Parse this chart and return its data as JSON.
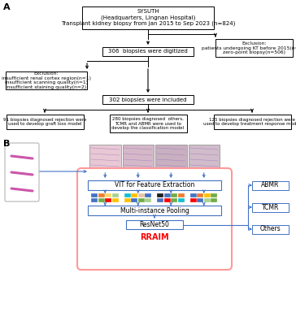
{
  "title_A": "A",
  "title_B": "B",
  "box_main": "SYSUTH\n(Headquarters, Lingnan Hospital)\nTransplant kidney biopsy from Jan 2015 to Sep 2023 (n=824)",
  "box_exclusion1": "Exclusion:\npatients undergoing KT before 2015(n=12)\nzero-point biopsy(n=506)",
  "box_digitized": "306  biopsies were digitized",
  "box_exclusion2": "Exclusion:\ninsufficient renal cortex region(n=1)\ninsufficient scanning quality(n=1)\ninsufficient staining quality(n=2)",
  "box_included": "302 biopsies were included",
  "box_left": "91 biopsies diagnosed rejection were\nused to develop graft loss model",
  "box_center": "280 biopsies diagnosed  others,\nTCMR and ABMR were used to\ndevelop the classification model",
  "box_right": "125 biopsies diagnosed rejection were\nused to develop treatment response model",
  "vit_label": "VIT for Feature Extraction",
  "mip_label": "Multi-instance Pooling",
  "resnet_label": "ResNet50",
  "rraim_label": "RRAIM",
  "abmr_label": "ABMR",
  "tcmr_label": "TCMR",
  "others_label": "Others",
  "arrow_color": "#4472C4",
  "rraim_color": "#FF0000",
  "bg_color": "#FFFFFF",
  "feat_colors_g1_r1": [
    "#4472C4",
    "#ED7D31",
    "#FFD966",
    "#A9D18E"
  ],
  "feat_colors_g1_r2": [
    "#4472C4",
    "#70AD47",
    "#FF0000",
    "#FFC000"
  ],
  "feat_colors_g2_r1": [
    "#17BECF",
    "#FFC000",
    "#E8C4A0",
    "#4472C4"
  ],
  "feat_colors_g2_r2": [
    "#FFC000",
    "#4472C4",
    "#70AD47",
    "#A9D18E"
  ],
  "feat_colors_g3_r1": [
    "#1F1F1F",
    "#4472C4",
    "#70AD47",
    "#ED7D31"
  ],
  "feat_colors_g3_r2": [
    "#4472C4",
    "#FF0000",
    "#70AD47",
    "#17BECF"
  ],
  "feat_colors_g4_r1": [
    "#4472C4",
    "#ED7D31",
    "#FFC000",
    "#70AD47"
  ],
  "feat_colors_g4_r2": [
    "#FF0000",
    "#4472C4",
    "#A9D18E",
    "#70AD47"
  ]
}
